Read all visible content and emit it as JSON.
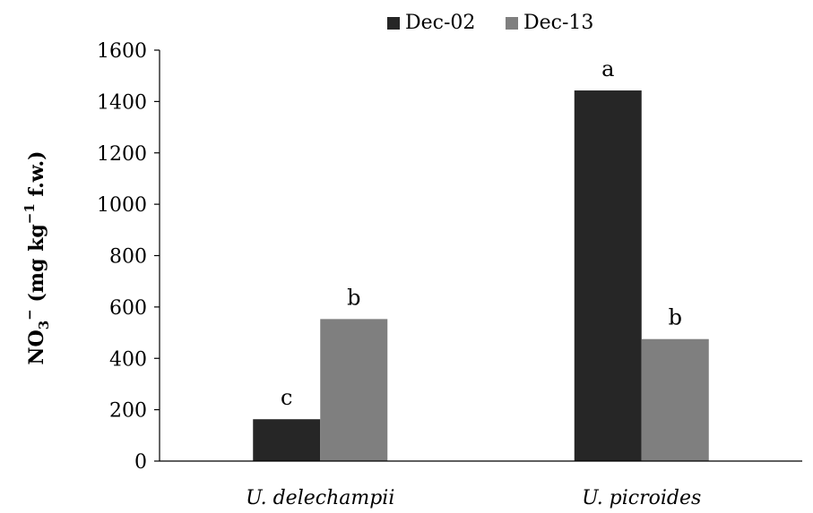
{
  "chart_data": {
    "type": "bar",
    "categories": [
      "U. delechampii",
      "U. picroides"
    ],
    "series": [
      {
        "name": "Dec-02",
        "color": "#262626",
        "values": [
          163,
          1443
        ]
      },
      {
        "name": "Dec-13",
        "color": "#7f7f7f",
        "values": [
          553,
          475
        ]
      }
    ],
    "annotations": [
      [
        "c",
        "b"
      ],
      [
        "a",
        "b"
      ]
    ],
    "ylabel_main": "NO",
    "ylabel_sub": "3",
    "ylabel_sup": "−",
    "ylabel_units_a": " (mg kg",
    "ylabel_units_sup": "−1",
    "ylabel_units_b": " f.w.)",
    "ylim": [
      0,
      1600
    ],
    "yticks": [
      0,
      200,
      400,
      600,
      800,
      1000,
      1200,
      1400,
      1600
    ],
    "grid": false,
    "legend_position": "top"
  }
}
